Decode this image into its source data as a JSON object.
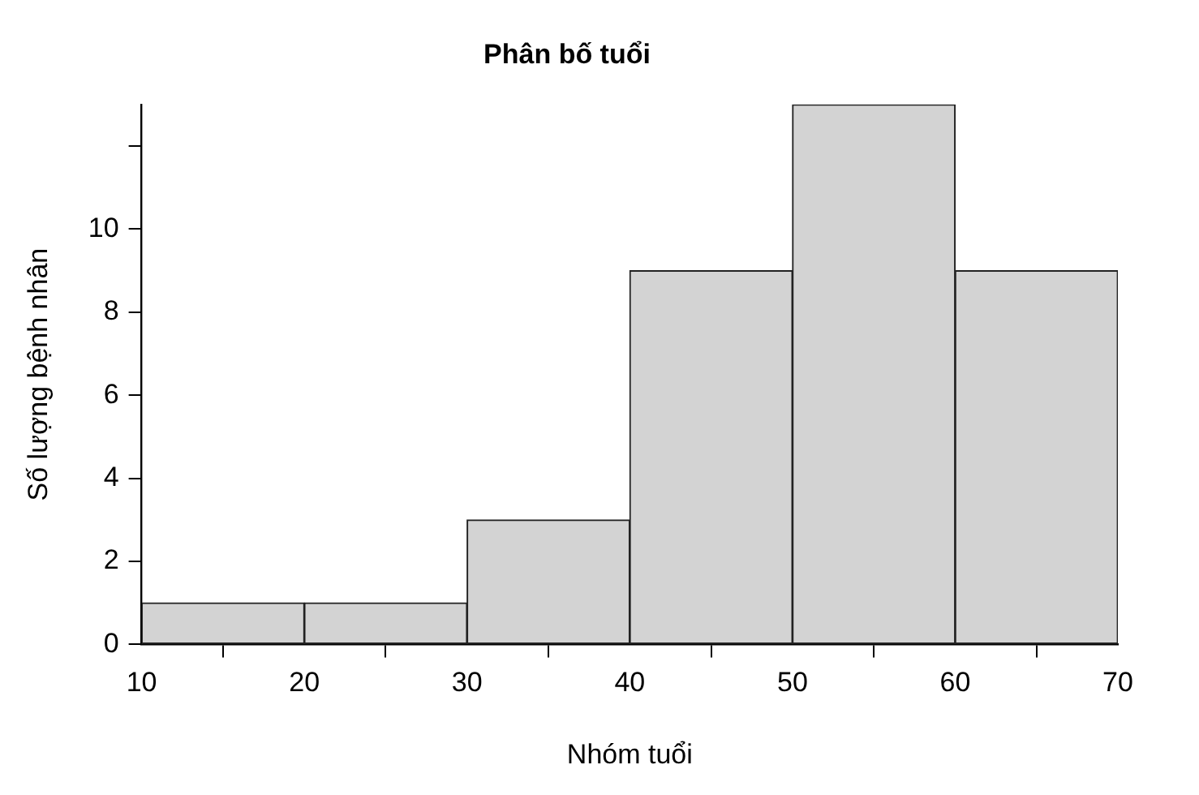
{
  "chart_data": {
    "type": "histogram",
    "title": "Phân bố tuổi",
    "xlabel": "Nhóm tuổi",
    "ylabel": "Số lượng bệnh nhân",
    "bins": [
      10,
      20,
      30,
      40,
      50,
      60,
      70
    ],
    "values": [
      1,
      1,
      3,
      9,
      13,
      9
    ],
    "color": "#d3d3d3",
    "xlim": [
      10,
      70
    ],
    "xticks": [
      10,
      20,
      30,
      40,
      50,
      60,
      70
    ],
    "ylim": [
      0,
      13
    ],
    "yticks": [
      0,
      2,
      4,
      6,
      8,
      10,
      {
        "value": 12,
        "label": null
      }
    ],
    "grid": false,
    "legend": false
  }
}
